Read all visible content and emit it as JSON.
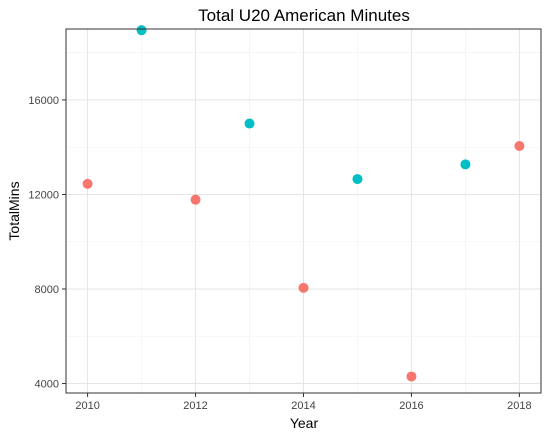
{
  "chart_data": {
    "type": "scatter",
    "title": "Total U20 American Minutes",
    "xlabel": "Year",
    "ylabel": "TotalMins",
    "xlim": [
      2009.6,
      2018.4
    ],
    "ylim": [
      3600,
      19000
    ],
    "x_ticks": [
      2010,
      2012,
      2014,
      2016,
      2018
    ],
    "y_ticks": [
      4000,
      8000,
      12000,
      16000
    ],
    "grid": true,
    "legend": "none",
    "colors": {
      "red": "#f8766d",
      "teal": "#00bfc4"
    },
    "points": [
      {
        "x": 2010,
        "y": 12450,
        "color": "#f8766d"
      },
      {
        "x": 2011,
        "y": 18950,
        "color": "#00bfc4"
      },
      {
        "x": 2012,
        "y": 11780,
        "color": "#f8766d"
      },
      {
        "x": 2013,
        "y": 15000,
        "color": "#00bfc4"
      },
      {
        "x": 2014,
        "y": 8050,
        "color": "#f8766d"
      },
      {
        "x": 2015,
        "y": 12650,
        "color": "#00bfc4"
      },
      {
        "x": 2016,
        "y": 4300,
        "color": "#f8766d"
      },
      {
        "x": 2017,
        "y": 13270,
        "color": "#00bfc4"
      },
      {
        "x": 2018,
        "y": 14050,
        "color": "#f8766d"
      }
    ]
  }
}
